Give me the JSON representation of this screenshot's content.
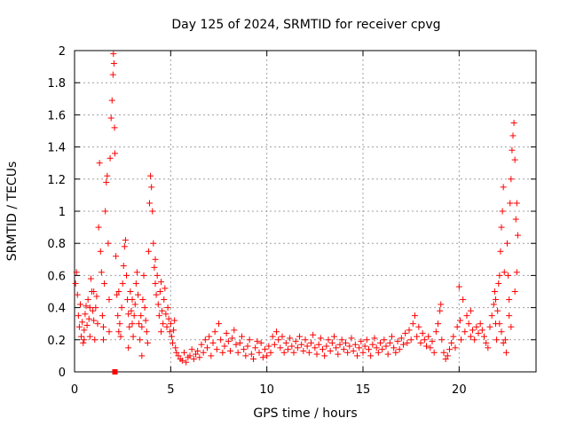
{
  "chart_data": {
    "type": "scatter",
    "title": "Day 125 of 2024, SRMTID for receiver cpvg",
    "xlabel": "GPS time / hours",
    "ylabel": "SRMTID / TECUs",
    "xlim": [
      0,
      24
    ],
    "ylim": [
      0,
      2
    ],
    "xticks": [
      0,
      5,
      10,
      15,
      20
    ],
    "xtick_labels": [
      "0",
      "5",
      "10",
      "15",
      "20"
    ],
    "yticks": [
      0,
      0.2,
      0.4,
      0.6,
      0.8,
      1,
      1.2,
      1.4,
      1.6,
      1.8,
      2
    ],
    "ytick_labels": [
      "0",
      "0.2",
      "0.4",
      "0.6",
      "0.8",
      "1",
      "1.2",
      "1.4",
      "1.6",
      "1.8",
      "2"
    ],
    "grid": true,
    "marker": "+",
    "color": "#ff0000",
    "series": [
      {
        "name": "SRMTID",
        "points": [
          [
            0.05,
            0.55
          ],
          [
            0.1,
            0.62
          ],
          [
            0.15,
            0.48
          ],
          [
            0.2,
            0.35
          ],
          [
            0.25,
            0.28
          ],
          [
            0.3,
            0.42
          ],
          [
            0.35,
            0.22
          ],
          [
            0.4,
            0.31
          ],
          [
            0.45,
            0.18
          ],
          [
            0.5,
            0.26
          ],
          [
            0.55,
            0.36
          ],
          [
            0.6,
            0.41
          ],
          [
            0.65,
            0.29
          ],
          [
            0.7,
            0.45
          ],
          [
            0.75,
            0.33
          ],
          [
            0.8,
            0.22
          ],
          [
            0.85,
            0.58
          ],
          [
            0.9,
            0.5
          ],
          [
            0.95,
            0.38
          ],
          [
            1.0,
            0.32
          ],
          [
            1.05,
            0.2
          ],
          [
            1.1,
            0.4
          ],
          [
            1.15,
            0.47
          ],
          [
            1.2,
            0.3
          ],
          [
            1.25,
            0.9
          ],
          [
            1.3,
            1.3
          ],
          [
            1.35,
            0.75
          ],
          [
            1.4,
            0.62
          ],
          [
            1.45,
            0.35
          ],
          [
            1.5,
            0.28
          ],
          [
            1.55,
            0.55
          ],
          [
            1.6,
            1.0
          ],
          [
            1.65,
            1.18
          ],
          [
            1.7,
            1.22
          ],
          [
            1.75,
            0.8
          ],
          [
            1.8,
            0.45
          ],
          [
            1.85,
            1.33
          ],
          [
            1.9,
            1.58
          ],
          [
            1.95,
            1.69
          ],
          [
            2.0,
            1.85
          ],
          [
            2.02,
            1.98
          ],
          [
            2.05,
            1.92
          ],
          [
            2.08,
            1.52
          ],
          [
            2.1,
            1.36
          ],
          [
            2.15,
            0.72
          ],
          [
            2.2,
            0.48
          ],
          [
            2.25,
            0.35
          ],
          [
            2.3,
            0.25
          ],
          [
            2.35,
            0.3
          ],
          [
            2.4,
            0.22
          ],
          [
            2.45,
            0.4
          ],
          [
            2.5,
            0.55
          ],
          [
            2.55,
            0.66
          ],
          [
            2.6,
            0.78
          ],
          [
            2.65,
            0.82
          ],
          [
            2.7,
            0.6
          ],
          [
            2.75,
            0.45
          ],
          [
            2.8,
            0.36
          ],
          [
            2.85,
            0.28
          ],
          [
            2.9,
            0.5
          ],
          [
            2.95,
            0.38
          ],
          [
            3.0,
            0.3
          ],
          [
            3.05,
            0.22
          ],
          [
            3.1,
            0.35
          ],
          [
            3.15,
            0.42
          ],
          [
            3.2,
            0.55
          ],
          [
            3.25,
            0.62
          ],
          [
            3.3,
            0.48
          ],
          [
            3.35,
            0.3
          ],
          [
            3.4,
            0.2
          ],
          [
            3.45,
            0.35
          ],
          [
            3.5,
            0.28
          ],
          [
            3.55,
            0.45
          ],
          [
            3.6,
            0.6
          ],
          [
            3.65,
            0.4
          ],
          [
            3.7,
            0.32
          ],
          [
            3.75,
            0.25
          ],
          [
            3.8,
            0.18
          ],
          [
            3.85,
            0.75
          ],
          [
            3.9,
            1.05
          ],
          [
            3.95,
            1.22
          ],
          [
            4.0,
            1.15
          ],
          [
            4.05,
            1.0
          ],
          [
            4.1,
            0.8
          ],
          [
            4.15,
            0.65
          ],
          [
            4.2,
            0.55
          ],
          [
            4.25,
            0.48
          ],
          [
            4.3,
            0.6
          ],
          [
            4.35,
            0.42
          ],
          [
            4.4,
            0.35
          ],
          [
            4.45,
            0.5
          ],
          [
            4.5,
            0.56
          ],
          [
            4.55,
            0.38
          ],
          [
            4.6,
            0.3
          ],
          [
            4.65,
            0.45
          ],
          [
            4.7,
            0.52
          ],
          [
            4.75,
            0.36
          ],
          [
            4.8,
            0.28
          ],
          [
            4.85,
            0.4
          ],
          [
            4.9,
            0.33
          ],
          [
            4.95,
            0.25
          ],
          [
            5.0,
            0.3
          ],
          [
            5.05,
            0.22
          ],
          [
            5.1,
            0.18
          ],
          [
            5.15,
            0.26
          ],
          [
            5.2,
            0.32
          ],
          [
            5.25,
            0.15
          ],
          [
            5.3,
            0.12
          ],
          [
            5.4,
            0.1
          ],
          [
            5.5,
            0.08
          ],
          [
            5.6,
            0.07
          ],
          [
            5.7,
            0.12
          ],
          [
            5.8,
            0.06
          ],
          [
            5.9,
            0.09
          ],
          [
            6.0,
            0.1
          ],
          [
            6.1,
            0.14
          ],
          [
            6.2,
            0.08
          ],
          [
            6.3,
            0.11
          ],
          [
            6.4,
            0.13
          ],
          [
            6.5,
            0.09
          ],
          [
            6.6,
            0.17
          ],
          [
            6.7,
            0.12
          ],
          [
            6.8,
            0.2
          ],
          [
            6.9,
            0.15
          ],
          [
            7.0,
            0.22
          ],
          [
            7.1,
            0.1
          ],
          [
            7.2,
            0.18
          ],
          [
            7.3,
            0.25
          ],
          [
            7.4,
            0.14
          ],
          [
            7.5,
            0.3
          ],
          [
            7.6,
            0.2
          ],
          [
            7.7,
            0.12
          ],
          [
            7.8,
            0.16
          ],
          [
            7.9,
            0.24
          ],
          [
            8.0,
            0.19
          ],
          [
            8.1,
            0.13
          ],
          [
            8.2,
            0.21
          ],
          [
            8.3,
            0.26
          ],
          [
            8.4,
            0.17
          ],
          [
            8.5,
            0.12
          ],
          [
            8.6,
            0.18
          ],
          [
            8.7,
            0.22
          ],
          [
            8.8,
            0.14
          ],
          [
            8.9,
            0.1
          ],
          [
            9.0,
            0.16
          ],
          [
            9.1,
            0.2
          ],
          [
            9.2,
            0.11
          ],
          [
            9.3,
            0.08
          ],
          [
            9.4,
            0.15
          ],
          [
            9.5,
            0.19
          ],
          [
            9.6,
            0.12
          ],
          [
            9.7,
            0.18
          ],
          [
            9.8,
            0.09
          ],
          [
            9.9,
            0.14
          ],
          [
            10.0,
            0.1
          ],
          [
            10.1,
            0.16
          ],
          [
            10.2,
            0.12
          ],
          [
            10.3,
            0.22
          ],
          [
            10.4,
            0.17
          ],
          [
            10.5,
            0.25
          ],
          [
            10.6,
            0.2
          ],
          [
            10.7,
            0.15
          ],
          [
            10.8,
            0.22
          ],
          [
            10.9,
            0.12
          ],
          [
            11.0,
            0.18
          ],
          [
            11.1,
            0.14
          ],
          [
            11.2,
            0.21
          ],
          [
            11.3,
            0.16
          ],
          [
            11.4,
            0.12
          ],
          [
            11.5,
            0.19
          ],
          [
            11.6,
            0.15
          ],
          [
            11.7,
            0.22
          ],
          [
            11.8,
            0.17
          ],
          [
            11.9,
            0.13
          ],
          [
            12.0,
            0.2
          ],
          [
            12.1,
            0.16
          ],
          [
            12.2,
            0.12
          ],
          [
            12.3,
            0.18
          ],
          [
            12.4,
            0.23
          ],
          [
            12.5,
            0.15
          ],
          [
            12.6,
            0.11
          ],
          [
            12.7,
            0.17
          ],
          [
            12.8,
            0.21
          ],
          [
            12.9,
            0.14
          ],
          [
            13.0,
            0.1
          ],
          [
            13.1,
            0.16
          ],
          [
            13.2,
            0.2
          ],
          [
            13.3,
            0.13
          ],
          [
            13.4,
            0.18
          ],
          [
            13.5,
            0.22
          ],
          [
            13.6,
            0.15
          ],
          [
            13.7,
            0.11
          ],
          [
            13.8,
            0.17
          ],
          [
            13.9,
            0.2
          ],
          [
            14.0,
            0.14
          ],
          [
            14.1,
            0.18
          ],
          [
            14.2,
            0.12
          ],
          [
            14.3,
            0.16
          ],
          [
            14.4,
            0.21
          ],
          [
            14.5,
            0.13
          ],
          [
            14.6,
            0.17
          ],
          [
            14.7,
            0.1
          ],
          [
            14.8,
            0.15
          ],
          [
            14.9,
            0.19
          ],
          [
            15.0,
            0.12
          ],
          [
            15.1,
            0.16
          ],
          [
            15.2,
            0.2
          ],
          [
            15.3,
            0.14
          ],
          [
            15.4,
            0.1
          ],
          [
            15.5,
            0.17
          ],
          [
            15.6,
            0.21
          ],
          [
            15.7,
            0.15
          ],
          [
            15.8,
            0.12
          ],
          [
            15.9,
            0.18
          ],
          [
            16.0,
            0.14
          ],
          [
            16.1,
            0.2
          ],
          [
            16.2,
            0.16
          ],
          [
            16.3,
            0.11
          ],
          [
            16.4,
            0.18
          ],
          [
            16.5,
            0.22
          ],
          [
            16.6,
            0.15
          ],
          [
            16.7,
            0.12
          ],
          [
            16.8,
            0.19
          ],
          [
            16.9,
            0.14
          ],
          [
            17.0,
            0.21
          ],
          [
            17.1,
            0.17
          ],
          [
            17.2,
            0.24
          ],
          [
            17.3,
            0.18
          ],
          [
            17.4,
            0.26
          ],
          [
            17.5,
            0.2
          ],
          [
            17.6,
            0.3
          ],
          [
            17.7,
            0.35
          ],
          [
            17.8,
            0.22
          ],
          [
            17.9,
            0.28
          ],
          [
            18.0,
            0.18
          ],
          [
            18.1,
            0.24
          ],
          [
            18.2,
            0.2
          ],
          [
            18.3,
            0.16
          ],
          [
            18.4,
            0.22
          ],
          [
            18.5,
            0.15
          ],
          [
            18.6,
            0.19
          ],
          [
            18.7,
            0.12
          ],
          [
            18.8,
            0.25
          ],
          [
            18.9,
            0.3
          ],
          [
            19.0,
            0.38
          ],
          [
            19.05,
            0.42
          ],
          [
            19.1,
            0.2
          ],
          [
            19.2,
            0.12
          ],
          [
            19.3,
            0.08
          ],
          [
            19.4,
            0.1
          ],
          [
            19.5,
            0.14
          ],
          [
            19.6,
            0.18
          ],
          [
            19.7,
            0.22
          ],
          [
            19.8,
            0.15
          ],
          [
            19.9,
            0.28
          ],
          [
            20.0,
            0.53
          ],
          [
            20.05,
            0.32
          ],
          [
            20.1,
            0.2
          ],
          [
            20.2,
            0.45
          ],
          [
            20.3,
            0.25
          ],
          [
            20.4,
            0.35
          ],
          [
            20.5,
            0.3
          ],
          [
            20.6,
            0.22
          ],
          [
            20.7,
            0.26
          ],
          [
            20.8,
            0.2
          ],
          [
            20.9,
            0.28
          ],
          [
            21.0,
            0.24
          ],
          [
            21.1,
            0.3
          ],
          [
            21.2,
            0.26
          ],
          [
            21.3,
            0.22
          ],
          [
            21.4,
            0.18
          ],
          [
            21.5,
            0.15
          ],
          [
            21.6,
            0.28
          ],
          [
            21.7,
            0.35
          ],
          [
            21.8,
            0.42
          ],
          [
            21.85,
            0.5
          ],
          [
            21.9,
            0.3
          ],
          [
            21.95,
            0.2
          ],
          [
            22.0,
            0.38
          ],
          [
            22.05,
            0.55
          ],
          [
            22.1,
            0.6
          ],
          [
            22.15,
            0.75
          ],
          [
            22.2,
            0.9
          ],
          [
            22.25,
            1.0
          ],
          [
            22.3,
            1.15
          ],
          [
            22.35,
            0.62
          ],
          [
            22.4,
            0.2
          ],
          [
            22.45,
            0.12
          ],
          [
            22.5,
            0.8
          ],
          [
            22.55,
            0.6
          ],
          [
            22.6,
            0.45
          ],
          [
            22.65,
            1.05
          ],
          [
            22.7,
            1.2
          ],
          [
            22.75,
            1.38
          ],
          [
            22.8,
            1.47
          ],
          [
            22.85,
            1.55
          ],
          [
            22.9,
            1.32
          ],
          [
            22.95,
            0.95
          ],
          [
            23.0,
            1.05
          ],
          [
            23.05,
            0.85
          ],
          [
            22.1,
            0.3
          ],
          [
            22.2,
            0.25
          ],
          [
            22.3,
            0.18
          ],
          [
            22.6,
            0.35
          ],
          [
            22.7,
            0.28
          ],
          [
            23.0,
            0.62
          ],
          [
            22.9,
            0.5
          ],
          [
            21.9,
            0.45
          ],
          [
            20.6,
            0.38
          ],
          [
            4.2,
            0.7
          ],
          [
            0.5,
            0.2
          ],
          [
            1.0,
            0.5
          ],
          [
            1.5,
            0.2
          ],
          [
            3.0,
            0.45
          ],
          [
            3.5,
            0.1
          ],
          [
            2.8,
            0.15
          ],
          [
            4.5,
            0.25
          ],
          [
            1.8,
            0.25
          ],
          [
            0.8,
            0.4
          ],
          [
            2.3,
            0.5
          ]
        ],
        "outlier_square": [
          2.1,
          0.0
        ]
      }
    ]
  }
}
